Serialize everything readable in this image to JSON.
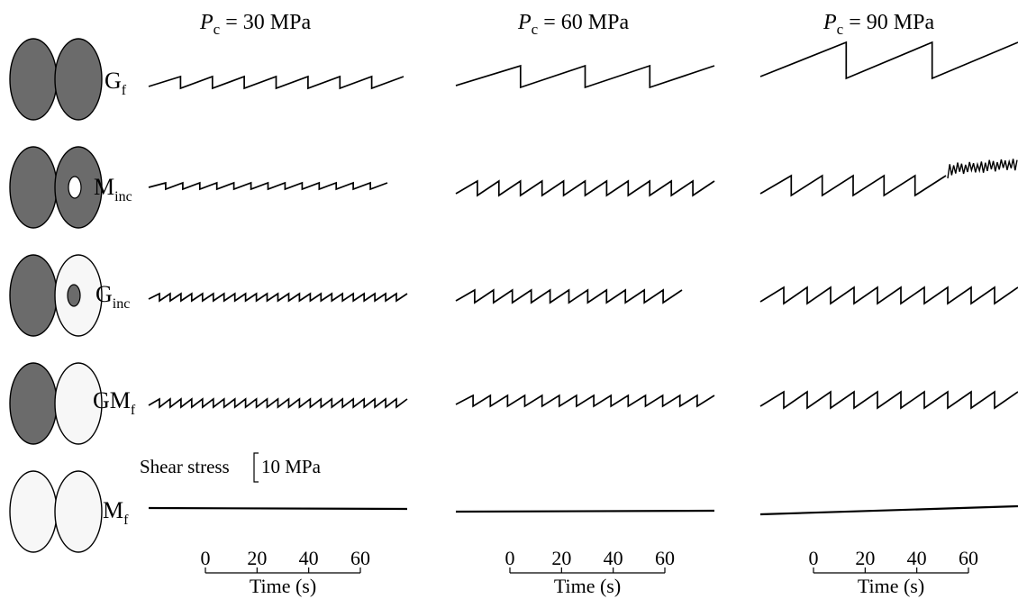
{
  "titles": [
    {
      "var": "P",
      "sub": "c",
      "rest": " = 30 MPa"
    },
    {
      "var": "P",
      "sub": "c",
      "rest": " = 60 MPa"
    },
    {
      "var": "P",
      "sub": "c",
      "rest": " = 90 MPa"
    }
  ],
  "rows": [
    {
      "main": "G",
      "sub": "f",
      "left_fill": "#6b6b6b",
      "right_fill": "#6b6b6b",
      "inner_fill": null
    },
    {
      "main": "M",
      "sub": "inc",
      "left_fill": "#6b6b6b",
      "right_fill": "#6b6b6b",
      "inner_fill": "#ffffff"
    },
    {
      "main": "G",
      "sub": "inc",
      "left_fill": "#6b6b6b",
      "right_fill": "#f7f7f7",
      "inner_fill": "#6b6b6b"
    },
    {
      "main": "GM",
      "sub": "f",
      "left_fill": "#6b6b6b",
      "right_fill": "#f7f7f7",
      "inner_fill": null
    },
    {
      "main": "M",
      "sub": "f",
      "left_fill": "#f7f7f7",
      "right_fill": "#f7f7f7",
      "inner_fill": null
    }
  ],
  "scale_bar": {
    "label": "Shear stress",
    "value": "10 MPa"
  },
  "time_axis": {
    "ticks": [
      "0",
      "20",
      "40",
      "60"
    ],
    "label": "Time (s)"
  },
  "colors": {
    "gouge": "#6b6b6b",
    "matrix": "#f7f7f7",
    "line": "#000000"
  }
}
